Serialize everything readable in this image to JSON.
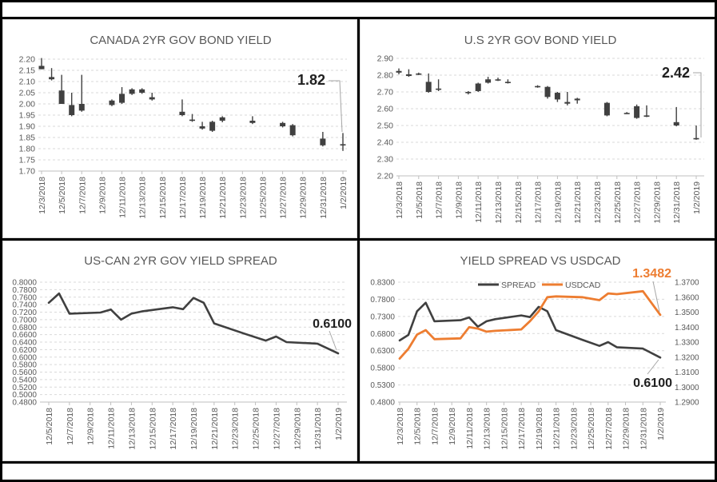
{
  "colors": {
    "candle": "#404040",
    "spread_line": "#404040",
    "usdcad_line": "#ED7D31",
    "grid": "#D9D9D9",
    "axis_line": "#BFBFBF",
    "text": "#595959",
    "annotation_dark": "#1F1F1F",
    "annotation_orange": "#ED7D31",
    "frame": "#000000"
  },
  "chart_data": [
    {
      "type": "candlestick",
      "title": "CANADA 2YR GOV BOND YIELD",
      "ylabel": "",
      "y_axis": {
        "min": 1.7,
        "max": 2.2,
        "step": 0.05,
        "decimals": 2
      },
      "x_labels": [
        "12/3/2018",
        "12/5/2018",
        "12/7/2018",
        "12/9/2018",
        "12/11/2018",
        "12/13/2018",
        "12/15/2018",
        "12/17/2018",
        "12/19/2018",
        "12/21/2018",
        "12/23/2018",
        "12/25/2018",
        "12/27/2018",
        "12/29/2018",
        "12/31/2018",
        "1/2/2019"
      ],
      "end_label": "1.82",
      "candles": [
        {
          "date": "12/3/2018",
          "o": 2.17,
          "h": 2.205,
          "l": 2.155,
          "c": 2.155
        },
        {
          "date": "12/4/2018",
          "o": 2.12,
          "h": 2.16,
          "l": 2.105,
          "c": 2.11
        },
        {
          "date": "12/5/2018",
          "o": 2.06,
          "h": 2.13,
          "l": 2.0,
          "c": 2.0
        },
        {
          "date": "12/6/2018",
          "o": 1.995,
          "h": 2.05,
          "l": 1.945,
          "c": 1.95
        },
        {
          "date": "12/7/2018",
          "o": 2.0,
          "h": 2.13,
          "l": 1.965,
          "c": 1.97
        },
        {
          "date": "12/10/2018",
          "o": 1.995,
          "h": 2.02,
          "l": 1.99,
          "c": 2.015
        },
        {
          "date": "12/11/2018",
          "o": 2.005,
          "h": 2.075,
          "l": 2.0,
          "c": 2.045
        },
        {
          "date": "12/12/2018",
          "o": 2.045,
          "h": 2.07,
          "l": 2.04,
          "c": 2.065
        },
        {
          "date": "12/13/2018",
          "o": 2.05,
          "h": 2.07,
          "l": 2.045,
          "c": 2.065
        },
        {
          "date": "12/14/2018",
          "o": 2.03,
          "h": 2.05,
          "l": 2.015,
          "c": 2.02
        },
        {
          "date": "12/17/2018",
          "o": 1.965,
          "h": 2.02,
          "l": 1.945,
          "c": 1.95
        },
        {
          "date": "12/18/2018",
          "o": 1.93,
          "h": 1.955,
          "l": 1.92,
          "c": 1.925
        },
        {
          "date": "12/19/2018",
          "o": 1.9,
          "h": 1.92,
          "l": 1.885,
          "c": 1.89
        },
        {
          "date": "12/20/2018",
          "o": 1.92,
          "h": 1.925,
          "l": 1.875,
          "c": 1.88
        },
        {
          "date": "12/21/2018",
          "o": 1.925,
          "h": 1.945,
          "l": 1.918,
          "c": 1.94
        },
        {
          "date": "12/24/2018",
          "o": 1.925,
          "h": 1.945,
          "l": 1.91,
          "c": 1.915
        },
        {
          "date": "12/27/2018",
          "o": 1.915,
          "h": 1.92,
          "l": 1.895,
          "c": 1.9
        },
        {
          "date": "12/28/2018",
          "o": 1.905,
          "h": 1.91,
          "l": 1.855,
          "c": 1.86
        },
        {
          "date": "12/31/2018",
          "o": 1.845,
          "h": 1.875,
          "l": 1.81,
          "c": 1.815
        },
        {
          "date": "1/2/2019",
          "o": 1.815,
          "h": 1.87,
          "l": 1.79,
          "c": 1.82
        }
      ]
    },
    {
      "type": "candlestick",
      "title": "U.S 2YR GOV BOND YIELD",
      "ylabel": "",
      "y_axis": {
        "min": 2.2,
        "max": 2.9,
        "step": 0.1,
        "decimals": 2
      },
      "x_labels": [
        "12/3/2018",
        "12/5/2018",
        "12/7/2018",
        "12/9/2018",
        "12/11/2018",
        "12/13/2018",
        "12/15/2018",
        "12/17/2018",
        "12/19/2018",
        "12/21/2018",
        "12/23/2018",
        "12/25/2018",
        "12/27/2018",
        "12/29/2018",
        "12/31/2018",
        "1/2/2019"
      ],
      "end_label": "2.42",
      "candles": [
        {
          "date": "12/3/2018",
          "o": 2.815,
          "h": 2.84,
          "l": 2.805,
          "c": 2.825
        },
        {
          "date": "12/4/2018",
          "o": 2.805,
          "h": 2.835,
          "l": 2.79,
          "c": 2.795
        },
        {
          "date": "12/5/2018",
          "o": 2.81,
          "h": 2.815,
          "l": 2.8,
          "c": 2.805
        },
        {
          "date": "12/6/2018",
          "o": 2.76,
          "h": 2.81,
          "l": 2.695,
          "c": 2.7
        },
        {
          "date": "12/7/2018",
          "o": 2.72,
          "h": 2.775,
          "l": 2.705,
          "c": 2.715
        },
        {
          "date": "12/10/2018",
          "o": 2.7,
          "h": 2.705,
          "l": 2.685,
          "c": 2.695
        },
        {
          "date": "12/11/2018",
          "o": 2.705,
          "h": 2.755,
          "l": 2.7,
          "c": 2.75
        },
        {
          "date": "12/12/2018",
          "o": 2.755,
          "h": 2.79,
          "l": 2.75,
          "c": 2.775
        },
        {
          "date": "12/13/2018",
          "o": 2.775,
          "h": 2.785,
          "l": 2.765,
          "c": 2.77
        },
        {
          "date": "12/14/2018",
          "o": 2.755,
          "h": 2.775,
          "l": 2.75,
          "c": 2.76
        },
        {
          "date": "12/17/2018",
          "o": 2.735,
          "h": 2.74,
          "l": 2.725,
          "c": 2.73
        },
        {
          "date": "12/18/2018",
          "o": 2.73,
          "h": 2.735,
          "l": 2.66,
          "c": 2.67
        },
        {
          "date": "12/19/2018",
          "o": 2.695,
          "h": 2.7,
          "l": 2.64,
          "c": 2.655
        },
        {
          "date": "12/20/2018",
          "o": 2.63,
          "h": 2.7,
          "l": 2.62,
          "c": 2.64
        },
        {
          "date": "12/21/2018",
          "o": 2.65,
          "h": 2.665,
          "l": 2.63,
          "c": 2.66
        },
        {
          "date": "12/24/2018",
          "o": 2.635,
          "h": 2.64,
          "l": 2.555,
          "c": 2.56
        },
        {
          "date": "12/26/2018",
          "o": 2.575,
          "h": 2.58,
          "l": 2.57,
          "c": 2.575
        },
        {
          "date": "12/27/2018",
          "o": 2.545,
          "h": 2.625,
          "l": 2.54,
          "c": 2.615
        },
        {
          "date": "12/28/2018",
          "o": 2.555,
          "h": 2.62,
          "l": 2.55,
          "c": 2.56
        },
        {
          "date": "12/31/2018",
          "o": 2.5,
          "h": 2.61,
          "l": 2.495,
          "c": 2.52
        },
        {
          "date": "1/2/2019",
          "o": 2.425,
          "h": 2.5,
          "l": 2.415,
          "c": 2.42
        }
      ]
    },
    {
      "type": "line",
      "title": "US-CAN 2YR GOV YIELD SPREAD",
      "y_axis": {
        "min": 0.48,
        "max": 0.8,
        "step": 0.02,
        "decimals": 4
      },
      "x_labels": [
        "12/5/2018",
        "12/7/2018",
        "12/9/2018",
        "12/11/2018",
        "12/13/2018",
        "12/15/2018",
        "12/17/2018",
        "12/19/2018",
        "12/21/2018",
        "12/23/2018",
        "12/25/2018",
        "12/27/2018",
        "12/29/2018",
        "12/31/2018",
        "1/2/2019"
      ],
      "end_label": "0.6100",
      "points": [
        {
          "date": "12/5/2018",
          "v": 0.745
        },
        {
          "date": "12/6/2018",
          "v": 0.77
        },
        {
          "date": "12/7/2018",
          "v": 0.716
        },
        {
          "date": "12/10/2018",
          "v": 0.719
        },
        {
          "date": "12/11/2018",
          "v": 0.727
        },
        {
          "date": "12/12/2018",
          "v": 0.7
        },
        {
          "date": "12/13/2018",
          "v": 0.716
        },
        {
          "date": "12/14/2018",
          "v": 0.722
        },
        {
          "date": "12/17/2018",
          "v": 0.733
        },
        {
          "date": "12/18/2018",
          "v": 0.728
        },
        {
          "date": "12/19/2018",
          "v": 0.758
        },
        {
          "date": "12/20/2018",
          "v": 0.745
        },
        {
          "date": "12/21/2018",
          "v": 0.69
        },
        {
          "date": "12/24/2018",
          "v": 0.662
        },
        {
          "date": "12/26/2018",
          "v": 0.644
        },
        {
          "date": "12/27/2018",
          "v": 0.655
        },
        {
          "date": "12/28/2018",
          "v": 0.64
        },
        {
          "date": "12/31/2018",
          "v": 0.636
        },
        {
          "date": "1/2/2019",
          "v": 0.61
        }
      ]
    },
    {
      "type": "line",
      "title": "YIELD SPREAD VS USDCAD",
      "legend": [
        "SPREAD",
        "USDCAD"
      ],
      "legend_position": "top-center",
      "left_axis": {
        "min": 0.48,
        "max": 0.83,
        "step": 0.05,
        "decimals": 4
      },
      "right_axis": {
        "min": 1.29,
        "max": 1.37,
        "step": 0.01,
        "decimals": 4
      },
      "x_labels": [
        "12/3/2018",
        "12/5/2018",
        "12/7/2018",
        "12/9/2018",
        "12/11/2018",
        "12/13/2018",
        "12/15/2018",
        "12/17/2018",
        "12/19/2018",
        "12/21/2018",
        "12/23/2018",
        "12/25/2018",
        "12/27/2018",
        "12/29/2018",
        "12/31/2018",
        "1/2/2019"
      ],
      "end_labels": {
        "spread": "0.6100",
        "usdcad": "1.3482"
      },
      "series": [
        {
          "name": "SPREAD",
          "axis": "left",
          "points": [
            {
              "date": "12/3/2018",
              "v": 0.66
            },
            {
              "date": "12/4/2018",
              "v": 0.676
            },
            {
              "date": "12/5/2018",
              "v": 0.745
            },
            {
              "date": "12/6/2018",
              "v": 0.77
            },
            {
              "date": "12/7/2018",
              "v": 0.716
            },
            {
              "date": "12/10/2018",
              "v": 0.719
            },
            {
              "date": "12/11/2018",
              "v": 0.727
            },
            {
              "date": "12/12/2018",
              "v": 0.7
            },
            {
              "date": "12/13/2018",
              "v": 0.716
            },
            {
              "date": "12/14/2018",
              "v": 0.722
            },
            {
              "date": "12/17/2018",
              "v": 0.733
            },
            {
              "date": "12/18/2018",
              "v": 0.728
            },
            {
              "date": "12/19/2018",
              "v": 0.758
            },
            {
              "date": "12/20/2018",
              "v": 0.745
            },
            {
              "date": "12/21/2018",
              "v": 0.69
            },
            {
              "date": "12/24/2018",
              "v": 0.662
            },
            {
              "date": "12/26/2018",
              "v": 0.644
            },
            {
              "date": "12/27/2018",
              "v": 0.655
            },
            {
              "date": "12/28/2018",
              "v": 0.64
            },
            {
              "date": "12/31/2018",
              "v": 0.636
            },
            {
              "date": "1/2/2019",
              "v": 0.61
            }
          ]
        },
        {
          "name": "USDCAD",
          "axis": "right",
          "points": [
            {
              "date": "12/3/2018",
              "v": 1.319
            },
            {
              "date": "12/4/2018",
              "v": 1.3255
            },
            {
              "date": "12/5/2018",
              "v": 1.335
            },
            {
              "date": "12/6/2018",
              "v": 1.338
            },
            {
              "date": "12/7/2018",
              "v": 1.332
            },
            {
              "date": "12/10/2018",
              "v": 1.3325
            },
            {
              "date": "12/11/2018",
              "v": 1.34
            },
            {
              "date": "12/12/2018",
              "v": 1.339
            },
            {
              "date": "12/13/2018",
              "v": 1.337
            },
            {
              "date": "12/14/2018",
              "v": 1.3375
            },
            {
              "date": "12/17/2018",
              "v": 1.3385
            },
            {
              "date": "12/18/2018",
              "v": 1.344
            },
            {
              "date": "12/19/2018",
              "v": 1.3505
            },
            {
              "date": "12/20/2018",
              "v": 1.36
            },
            {
              "date": "12/21/2018",
              "v": 1.3605
            },
            {
              "date": "12/24/2018",
              "v": 1.36
            },
            {
              "date": "12/26/2018",
              "v": 1.358
            },
            {
              "date": "12/27/2018",
              "v": 1.3625
            },
            {
              "date": "12/28/2018",
              "v": 1.362
            },
            {
              "date": "12/31/2018",
              "v": 1.364
            },
            {
              "date": "1/2/2019",
              "v": 1.3482
            }
          ]
        }
      ]
    }
  ]
}
